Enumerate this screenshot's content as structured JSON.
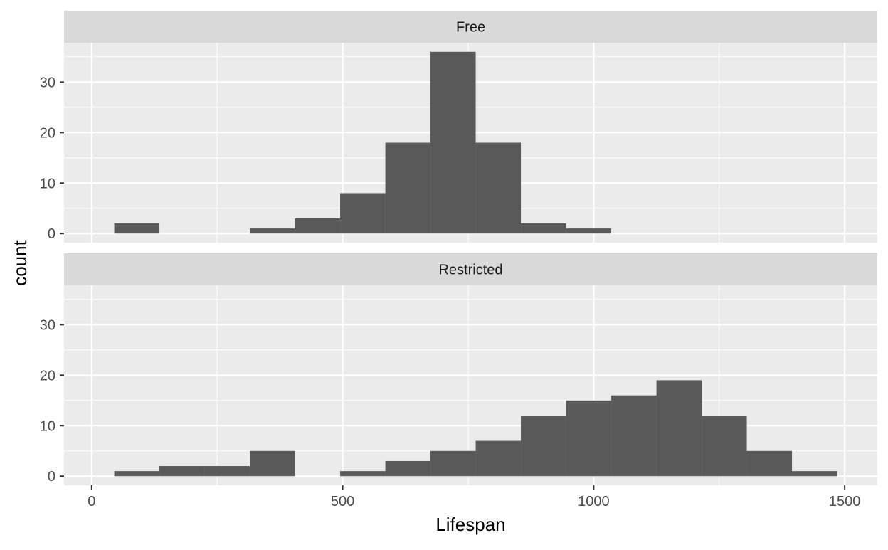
{
  "chart_data": {
    "type": "bar",
    "subtype": "faceted-histogram",
    "xlabel": "Lifespan",
    "ylabel": "count",
    "xlim": [
      -55,
      1565
    ],
    "ylim": [
      -1.8,
      37.8
    ],
    "x_ticks": [
      0,
      500,
      1000,
      1500
    ],
    "x_tick_labels": [
      "0",
      "500",
      "1000",
      "1500"
    ],
    "y_ticks": [
      0,
      10,
      20,
      30
    ],
    "y_tick_labels": [
      "0",
      "10",
      "20",
      "30"
    ],
    "grid": true,
    "legend": "none",
    "colors": {
      "bar": "#595959",
      "panel": "#ebebeb",
      "grid": "#ffffff",
      "strip": "#d9d9d9",
      "text": "#1a1a1a",
      "tick_text": "#4d4d4d",
      "tick": "#333333"
    },
    "bin_width": 90,
    "bin_starts": [
      45,
      135,
      225,
      315,
      405,
      495,
      585,
      675,
      765,
      855,
      945,
      1035,
      1125,
      1215,
      1305,
      1395
    ],
    "facets": [
      {
        "label": "Free",
        "counts": [
          2,
          0,
          0,
          1,
          3,
          8,
          18,
          36,
          18,
          2,
          1,
          0,
          0,
          0,
          0,
          0
        ]
      },
      {
        "label": "Restricted",
        "counts": [
          1,
          2,
          2,
          5,
          0,
          1,
          3,
          5,
          7,
          12,
          15,
          16,
          19,
          12,
          5,
          1
        ]
      }
    ]
  }
}
